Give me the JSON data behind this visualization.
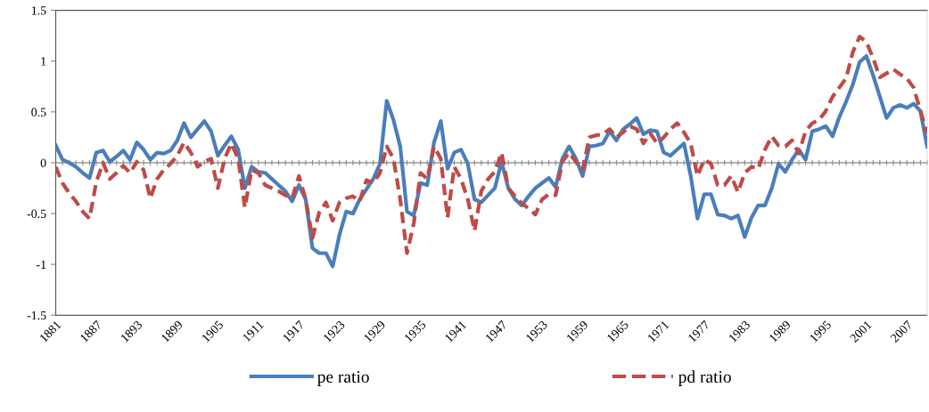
{
  "chart_data": {
    "type": "line",
    "categories": [
      "1881",
      null,
      null,
      null,
      null,
      null,
      "1887",
      null,
      null,
      null,
      null,
      null,
      "1893",
      null,
      null,
      null,
      null,
      null,
      "1899",
      null,
      null,
      null,
      null,
      null,
      "1905",
      null,
      null,
      null,
      null,
      null,
      "1911",
      null,
      null,
      null,
      null,
      null,
      "1917",
      null,
      null,
      null,
      null,
      null,
      "1923",
      null,
      null,
      null,
      null,
      null,
      "1929",
      null,
      null,
      null,
      null,
      null,
      "1935",
      null,
      null,
      null,
      null,
      null,
      "1941",
      null,
      null,
      null,
      null,
      null,
      "1947",
      null,
      null,
      null,
      null,
      null,
      "1953",
      null,
      null,
      null,
      null,
      null,
      "1959",
      null,
      null,
      null,
      null,
      null,
      "1965",
      null,
      null,
      null,
      null,
      null,
      "1971",
      null,
      null,
      null,
      null,
      null,
      "1977",
      null,
      null,
      null,
      null,
      null,
      "1983",
      null,
      null,
      null,
      null,
      null,
      "1989",
      null,
      null,
      null,
      null,
      null,
      "1995",
      null,
      null,
      null,
      null,
      null,
      "2001",
      null,
      null,
      null,
      null,
      null,
      "2007",
      null,
      null,
      null
    ],
    "series": [
      {
        "name": "pe ratio",
        "color": "#4a7ebb",
        "line_style": "solid",
        "values": [
          0.17,
          0.03,
          0.0,
          -0.04,
          -0.1,
          -0.15,
          0.1,
          0.12,
          0.01,
          0.06,
          0.12,
          0.03,
          0.2,
          0.13,
          0.03,
          0.1,
          0.09,
          0.12,
          0.22,
          0.39,
          0.25,
          0.33,
          0.41,
          0.31,
          0.07,
          0.17,
          0.26,
          0.13,
          -0.25,
          -0.04,
          -0.09,
          -0.1,
          -0.16,
          -0.22,
          -0.28,
          -0.38,
          -0.22,
          -0.36,
          -0.84,
          -0.89,
          -0.89,
          -1.02,
          -0.71,
          -0.48,
          -0.5,
          -0.36,
          -0.26,
          -0.16,
          -0.01,
          0.61,
          0.42,
          0.16,
          -0.48,
          -0.52,
          -0.2,
          -0.22,
          0.2,
          0.41,
          -0.06,
          0.1,
          0.13,
          -0.01,
          -0.36,
          -0.39,
          -0.32,
          -0.25,
          0.01,
          -0.25,
          -0.36,
          -0.42,
          -0.33,
          -0.25,
          -0.2,
          -0.15,
          -0.24,
          0.04,
          0.16,
          0.04,
          -0.13,
          0.16,
          0.17,
          0.19,
          0.31,
          0.22,
          0.33,
          0.38,
          0.44,
          0.28,
          0.32,
          0.31,
          0.1,
          0.07,
          0.13,
          0.19,
          -0.13,
          -0.55,
          -0.31,
          -0.31,
          -0.51,
          -0.52,
          -0.55,
          -0.52,
          -0.73,
          -0.54,
          -0.42,
          -0.42,
          -0.25,
          -0.01,
          -0.09,
          0.03,
          0.13,
          0.03,
          0.31,
          0.33,
          0.36,
          0.26,
          0.45,
          0.6,
          0.77,
          0.99,
          1.05,
          0.86,
          0.65,
          0.44,
          0.54,
          0.57,
          0.54,
          0.58,
          0.51,
          0.16
        ]
      },
      {
        "name": "pd ratio",
        "color": "#be4b48",
        "line_style": "dashed",
        "values": [
          -0.04,
          -0.2,
          -0.3,
          -0.38,
          -0.48,
          -0.55,
          -0.19,
          0.0,
          -0.16,
          -0.1,
          -0.03,
          -0.1,
          0.01,
          -0.07,
          -0.35,
          -0.16,
          -0.07,
          -0.01,
          0.07,
          0.2,
          0.1,
          -0.04,
          0.01,
          0.04,
          -0.25,
          0.04,
          0.19,
          0.04,
          -0.44,
          -0.07,
          -0.1,
          -0.22,
          -0.25,
          -0.28,
          -0.32,
          -0.35,
          -0.13,
          -0.36,
          -0.74,
          -0.49,
          -0.39,
          -0.57,
          -0.39,
          -0.35,
          -0.33,
          -0.38,
          -0.17,
          -0.2,
          -0.1,
          0.16,
          0.04,
          -0.36,
          -0.89,
          -0.6,
          -0.1,
          -0.16,
          0.16,
          0.04,
          -0.54,
          -0.04,
          -0.16,
          -0.36,
          -0.67,
          -0.28,
          -0.16,
          -0.09,
          0.1,
          -0.25,
          -0.33,
          -0.4,
          -0.45,
          -0.51,
          -0.36,
          -0.31,
          -0.32,
          0.01,
          0.1,
          0.01,
          -0.07,
          0.25,
          0.27,
          0.28,
          0.33,
          0.25,
          0.3,
          0.36,
          0.33,
          0.19,
          0.29,
          0.19,
          0.25,
          0.33,
          0.39,
          0.3,
          0.19,
          -0.13,
          0.03,
          -0.01,
          -0.22,
          -0.22,
          -0.13,
          -0.29,
          -0.1,
          -0.04,
          -0.06,
          0.13,
          0.26,
          0.17,
          0.16,
          0.22,
          0.09,
          0.31,
          0.39,
          0.42,
          0.51,
          0.65,
          0.74,
          0.83,
          1.09,
          1.24,
          1.19,
          1.03,
          0.84,
          0.88,
          0.92,
          0.87,
          0.83,
          0.74,
          0.51,
          0.29
        ]
      }
    ],
    "ylim": [
      -1.5,
      1.5
    ],
    "yticks": [
      -1.5,
      -1,
      -0.5,
      0,
      0.5,
      1,
      1.5
    ],
    "legend": "bottom",
    "marker": "none"
  }
}
